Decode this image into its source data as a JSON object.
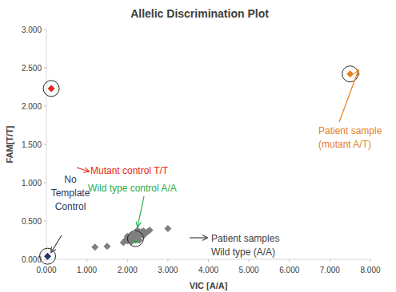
{
  "chart_data": {
    "type": "scatter",
    "title": "Allelic Discrimination Plot",
    "x_label": "VIC [A/A]",
    "y_label": "FAM[T/T]",
    "xlim": [
      0,
      8
    ],
    "xticks": [
      {
        "value": 0,
        "label": "0.000"
      },
      {
        "value": 1,
        "label": "1.000"
      },
      {
        "value": 2,
        "label": "2.000"
      },
      {
        "value": 3,
        "label": "3.000"
      },
      {
        "value": 4,
        "label": "4.000"
      },
      {
        "value": 5,
        "label": "5.000"
      },
      {
        "value": 6,
        "label": "6.000"
      },
      {
        "value": 7,
        "label": "7.000"
      },
      {
        "value": 8,
        "label": "8.000"
      }
    ],
    "ylim": [
      0,
      3
    ],
    "yticks": [
      {
        "value": 0,
        "label": "0.000"
      },
      {
        "value": 0.5,
        "label": "0.500"
      },
      {
        "value": 1,
        "label": "1.000"
      },
      {
        "value": 1.5,
        "label": "1.500"
      },
      {
        "value": 2,
        "label": "2.000"
      },
      {
        "value": 2.5,
        "label": "2.500"
      },
      {
        "value": 3,
        "label": "3.000"
      }
    ],
    "grid": false,
    "series": [
      {
        "name": "Mutant control T/T",
        "color": "#e8251b",
        "marker": "diamond",
        "x": [
          0.12
        ],
        "values": [
          2.23
        ]
      },
      {
        "name": "Patient sample\n(mutant A/T)",
        "color": "#e5811f",
        "marker": "diamond",
        "x": [
          7.5
        ],
        "values": [
          2.42
        ]
      },
      {
        "name": "No\nTemplate\nControl",
        "color": "#1f3864",
        "marker": "diamond",
        "x": [
          0.03
        ],
        "values": [
          0.04
        ]
      },
      {
        "name": "Wild type control A/A",
        "color": "#1faa4a",
        "marker": "circle",
        "x": [
          2.2
        ],
        "values": [
          0.27
        ]
      },
      {
        "name": "Patient samples\nWild type (A/A)",
        "color": "#7f7f7f",
        "marker": "diamond",
        "x": [
          1.2,
          1.5,
          1.9,
          1.95,
          2.0,
          2.02,
          2.05,
          2.08,
          2.1,
          2.12,
          2.15,
          2.18,
          2.2,
          2.22,
          2.25,
          2.28,
          2.3,
          2.32,
          2.35,
          2.38,
          2.4,
          2.42,
          2.45,
          2.5,
          2.55,
          2.1,
          2.3,
          2.0,
          2.25,
          2.4,
          3.0
        ],
        "values": [
          0.16,
          0.17,
          0.22,
          0.25,
          0.24,
          0.28,
          0.26,
          0.3,
          0.27,
          0.32,
          0.29,
          0.31,
          0.33,
          0.28,
          0.34,
          0.3,
          0.35,
          0.32,
          0.36,
          0.33,
          0.37,
          0.34,
          0.35,
          0.36,
          0.38,
          0.23,
          0.25,
          0.3,
          0.38,
          0.31,
          0.4
        ]
      }
    ]
  }
}
